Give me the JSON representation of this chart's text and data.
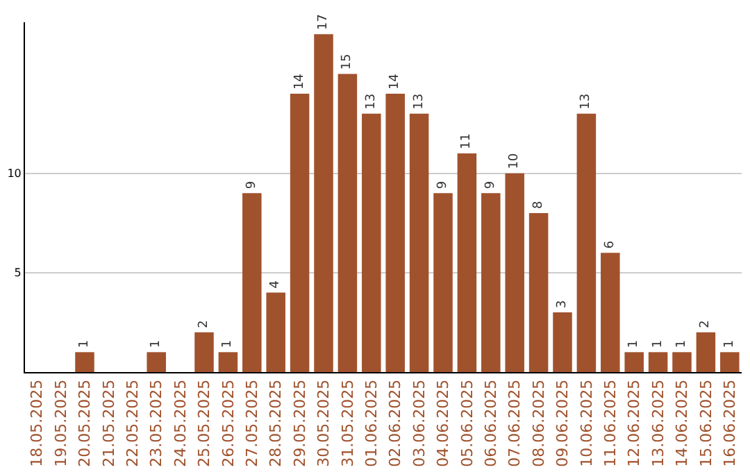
{
  "chart_data": {
    "type": "bar",
    "categories": [
      "18.05.2025",
      "19.05.2025",
      "20.05.2025",
      "21.05.2025",
      "22.05.2025",
      "23.05.2025",
      "24.05.2025",
      "25.05.2025",
      "26.05.2025",
      "27.05.2025",
      "28.05.2025",
      "29.05.2025",
      "30.05.2025",
      "31.05.2025",
      "01.06.2025",
      "02.06.2025",
      "03.06.2025",
      "04.06.2025",
      "05.06.2025",
      "06.06.2025",
      "07.06.2025",
      "08.06.2025",
      "09.06.2025",
      "10.06.2025",
      "11.06.2025",
      "12.06.2025",
      "13.06.2025",
      "14.06.2025",
      "15.06.2025",
      "16.06.2025"
    ],
    "values": [
      0,
      0,
      1,
      0,
      0,
      1,
      0,
      2,
      1,
      9,
      4,
      14,
      17,
      15,
      13,
      14,
      13,
      9,
      11,
      9,
      10,
      8,
      3,
      13,
      6,
      1,
      1,
      1,
      2,
      1
    ],
    "value_labels": [
      null,
      null,
      "1",
      null,
      null,
      "1",
      null,
      "2",
      "1",
      "9",
      "4",
      "14",
      "17",
      "15",
      "13",
      "14",
      "13",
      "9",
      "11",
      "9",
      "10",
      "8",
      "3",
      "13",
      "6",
      "1",
      "1",
      "1",
      "2",
      "1"
    ],
    "color": "#a0522d",
    "ylim": [
      0,
      17.6
    ],
    "yticks": [
      5,
      10
    ],
    "grid": "y"
  }
}
